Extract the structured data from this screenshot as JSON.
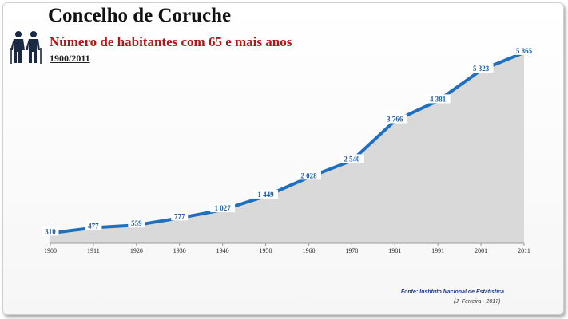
{
  "title": "Concelho de Coruche",
  "subtitle": "Número de habitantes com 65 e mais anos",
  "period": "1900/2011",
  "source": "Fonte: Instituto Nacional de Estatística",
  "author": "(J. Ferreira - 2017)",
  "colors": {
    "line": "#1f6fbf",
    "area": "#d9d9d9",
    "title": "#111111",
    "subtitle": "#b01818"
  },
  "icon": "elderly-couple-icon",
  "chart_data": {
    "type": "area",
    "x": [
      1900,
      1911,
      1920,
      1930,
      1940,
      1950,
      1960,
      1970,
      1981,
      1991,
      2001,
      2011
    ],
    "categories": [
      "1900",
      "1911",
      "1920",
      "1930",
      "1940",
      "1950",
      "1960",
      "1970",
      "1981",
      "1991",
      "2001",
      "2011"
    ],
    "values": [
      310,
      477,
      559,
      777,
      1027,
      1449,
      2028,
      2540,
      3766,
      4381,
      5323,
      5865
    ],
    "labels": [
      "310",
      "477",
      "559",
      "777",
      "1 027",
      "1 449",
      "2 028",
      "2 540",
      "3 766",
      "4 381",
      "5 323",
      "5 865"
    ],
    "ylim": [
      0,
      6500
    ],
    "grid": false
  }
}
